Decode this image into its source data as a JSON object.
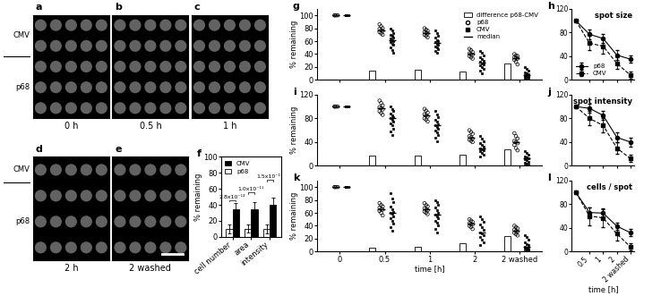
{
  "images": {
    "row_labels": [
      "CMV",
      "p68"
    ],
    "panels": [
      {
        "letter": "a",
        "label": "0 h"
      },
      {
        "letter": "b",
        "label": "0.5 h"
      },
      {
        "letter": "c",
        "label": "1 h"
      },
      {
        "letter": "d",
        "label": "2 h"
      },
      {
        "letter": "e",
        "label": "2 washed"
      }
    ]
  },
  "chart_data": [
    {
      "panel": "f",
      "type": "bar",
      "categories": [
        "cell number",
        "area",
        "intensity"
      ],
      "ylabel": "% remaining",
      "ylim": [
        0,
        100
      ],
      "yticks": [
        0,
        20,
        40,
        60,
        80,
        100
      ],
      "legend": "upper left",
      "series": [
        {
          "name": "CMV",
          "color": "#000000",
          "values": [
            34,
            35,
            40
          ],
          "errors": [
            8,
            8,
            9
          ]
        },
        {
          "name": "p68",
          "color": "#ffffff",
          "values": [
            10,
            10,
            10
          ],
          "errors": [
            6,
            5,
            6
          ]
        }
      ],
      "annotations": [
        "2.8x10⁻¹²",
        "1.0x10⁻¹¹",
        "1.5x10⁻¹¹"
      ]
    },
    {
      "panel": "g",
      "type": "strip",
      "categories": [
        "0",
        "0.5",
        "1",
        "2",
        "2 washed"
      ],
      "tick_labels": "y",
      "ylabel": "% remaining",
      "ylim": [
        0,
        110
      ],
      "yticks": [
        0,
        20,
        40,
        60,
        80,
        100
      ],
      "legend": "upper right",
      "series": [
        {
          "name": "difference p68-CMV",
          "type": "bar",
          "color": "#ffffff",
          "values": [
            0,
            15,
            16,
            13,
            26
          ]
        },
        {
          "name": "p68",
          "marker": "open circle",
          "color": "#000000",
          "median": [
            100,
            77,
            73,
            40,
            34
          ],
          "points": [
            [
              100,
              100,
              100,
              100
            ],
            [
              86,
              83,
              80,
              79,
              77,
              76,
              74,
              72,
              70
            ],
            [
              80,
              78,
              76,
              74,
              73,
              72,
              70,
              68,
              66
            ],
            [
              48,
              46,
              43,
              41,
              40,
              39,
              37,
              35,
              33
            ],
            [
              40,
              38,
              37,
              35,
              34,
              33,
              31,
              28,
              24
            ]
          ]
        },
        {
          "name": "CMV",
          "marker": "square",
          "color": "#000000",
          "median": [
            100,
            62,
            57,
            27,
            8
          ],
          "points": [
            [
              100,
              100,
              100,
              100,
              100
            ],
            [
              80,
              76,
              72,
              70,
              68,
              66,
              64,
              62,
              60,
              58,
              56,
              54,
              50,
              46,
              42
            ],
            [
              76,
              72,
              68,
              65,
              62,
              60,
              58,
              56,
              54,
              52,
              50,
              48,
              45,
              42
            ],
            [
              45,
              42,
              38,
              35,
              32,
              30,
              28,
              26,
              24,
              22,
              20,
              17,
              14,
              10
            ],
            [
              20,
              17,
              15,
              12,
              10,
              9,
              8,
              7,
              6,
              5,
              4,
              3,
              2,
              1
            ]
          ]
        },
        {
          "name": "median",
          "marker": "dash",
          "color": "#000000"
        }
      ]
    },
    {
      "panel": "i",
      "type": "strip",
      "categories": [
        "0",
        "0.5",
        "1",
        "2",
        "2 washed"
      ],
      "tick_labels": "y",
      "ylabel": "% remaining",
      "ylim": [
        0,
        120
      ],
      "yticks": [
        0,
        40,
        80,
        120
      ],
      "series": [
        {
          "name": "difference p68-CMV",
          "type": "bar",
          "color": "#ffffff",
          "values": [
            0,
            17,
            17,
            18,
            28
          ]
        },
        {
          "name": "p68",
          "marker": "open circle",
          "color": "#000000",
          "median": [
            100,
            97,
            85,
            48,
            40
          ],
          "points": [
            [
              100,
              100,
              100,
              100
            ],
            [
              110,
              106,
              102,
              99,
              97,
              95,
              92,
              89,
              86
            ],
            [
              96,
              93,
              90,
              87,
              85,
              83,
              80,
              78,
              75
            ],
            [
              60,
              57,
              54,
              50,
              48,
              46,
              44,
              42,
              40
            ],
            [
              55,
              50,
              46,
              42,
              40,
              38,
              35,
              30,
              26
            ]
          ]
        },
        {
          "name": "CMV",
          "marker": "square",
          "color": "#000000",
          "median": [
            100,
            80,
            68,
            30,
            12
          ],
          "points": [
            [
              100,
              100,
              100,
              100,
              100
            ],
            [
              100,
              96,
              92,
              88,
              85,
              82,
              80,
              78,
              75,
              72,
              68,
              63,
              58,
              52
            ],
            [
              92,
              86,
              82,
              78,
              74,
              70,
              68,
              66,
              63,
              60,
              56,
              52,
              47,
              42
            ],
            [
              50,
              46,
              42,
              38,
              35,
              32,
              30,
              28,
              26,
              24,
              21,
              18,
              15
            ],
            [
              25,
              22,
              19,
              16,
              14,
              12,
              11,
              9,
              7,
              5,
              3,
              2,
              1
            ]
          ]
        }
      ]
    },
    {
      "panel": "k",
      "type": "strip",
      "categories": [
        "0",
        "0.5",
        "1",
        "2",
        "2 washed"
      ],
      "xlabel": "time [h]",
      "ylabel": "% remaining",
      "ylim": [
        0,
        110
      ],
      "yticks": [
        0,
        20,
        40,
        60,
        80,
        100
      ],
      "series": [
        {
          "name": "difference p68-CMV",
          "type": "bar",
          "color": "#ffffff",
          "values": [
            0,
            6,
            8,
            13,
            24
          ]
        },
        {
          "name": "p68",
          "marker": "open circle",
          "color": "#000000",
          "median": [
            100,
            66,
            65,
            43,
            32
          ],
          "points": [
            [
              100,
              100,
              100,
              100
            ],
            [
              75,
              72,
              70,
              68,
              66,
              65,
              63,
              60,
              56
            ],
            [
              75,
              72,
              70,
              67,
              65,
              64,
              62,
              60,
              58
            ],
            [
              50,
              48,
              46,
              44,
              43,
              42,
              40,
              38,
              35
            ],
            [
              40,
              38,
              36,
              34,
              32,
              31,
              29,
              27,
              25
            ]
          ]
        },
        {
          "name": "CMV",
          "marker": "square",
          "color": "#000000",
          "median": [
            100,
            60,
            57,
            30,
            8
          ],
          "points": [
            [
              100,
              100,
              100,
              100,
              100
            ],
            [
              90,
              82,
              76,
              70,
              66,
              62,
              60,
              58,
              55,
              52,
              48,
              44,
              38,
              32
            ],
            [
              80,
              76,
              72,
              68,
              64,
              60,
              57,
              55,
              52,
              48,
              45,
              40,
              35,
              30
            ],
            [
              55,
              50,
              46,
              42,
              38,
              34,
              30,
              28,
              25,
              22,
              18,
              14,
              10
            ],
            [
              25,
              22,
              18,
              15,
              12,
              10,
              8,
              6,
              5,
              4,
              3,
              2,
              1
            ]
          ]
        }
      ]
    },
    {
      "panel": "h",
      "type": "line",
      "title": "spot size",
      "categories": [
        null,
        "0.5",
        "1",
        "2",
        "2 washed"
      ],
      "tick_labels": "y",
      "ylim": [
        0,
        120
      ],
      "yticks": [
        0,
        40,
        80,
        120
      ],
      "legend": "lower left",
      "series": [
        {
          "name": "p68",
          "color": "#000000",
          "marker": "circle",
          "line_style": "solid",
          "values": [
            100,
            77,
            70,
            42,
            35
          ],
          "errors": [
            0,
            8,
            8,
            8,
            6
          ]
        },
        {
          "name": "CMV",
          "color": "#000000",
          "marker": "square",
          "line_style": "dashed",
          "values": [
            100,
            62,
            57,
            28,
            8
          ],
          "errors": [
            0,
            12,
            12,
            10,
            6
          ]
        }
      ]
    },
    {
      "panel": "j",
      "type": "line",
      "title": "spot intensity",
      "categories": [
        null,
        "0.5",
        "1",
        "2",
        "2 washed"
      ],
      "tick_labels": "y",
      "ylim": [
        0,
        120
      ],
      "yticks": [
        0,
        40,
        80,
        120
      ],
      "series": [
        {
          "name": "p68",
          "color": "#000000",
          "marker": "circle",
          "line_style": "solid",
          "values": [
            100,
            97,
            85,
            48,
            40
          ],
          "errors": [
            0,
            8,
            8,
            8,
            8
          ]
        },
        {
          "name": "CMV",
          "color": "#000000",
          "marker": "square",
          "line_style": "dashed",
          "values": [
            100,
            80,
            68,
            30,
            12
          ],
          "errors": [
            0,
            12,
            12,
            10,
            6
          ]
        }
      ]
    },
    {
      "panel": "l",
      "type": "line",
      "title": "cells / spot",
      "categories": [
        null,
        "0.5",
        "1",
        "2",
        "2 washed"
      ],
      "xlabel": "time [h]",
      "ylim": [
        0,
        120
      ],
      "yticks": [
        0,
        40,
        80,
        120
      ],
      "series": [
        {
          "name": "p68",
          "color": "#000000",
          "marker": "circle",
          "line_style": "solid",
          "values": [
            100,
            66,
            65,
            43,
            32
          ],
          "errors": [
            0,
            8,
            8,
            6,
            6
          ]
        },
        {
          "name": "CMV",
          "color": "#000000",
          "marker": "square",
          "line_style": "dashed",
          "values": [
            100,
            60,
            57,
            30,
            8
          ],
          "errors": [
            0,
            15,
            15,
            12,
            6
          ]
        }
      ]
    }
  ]
}
